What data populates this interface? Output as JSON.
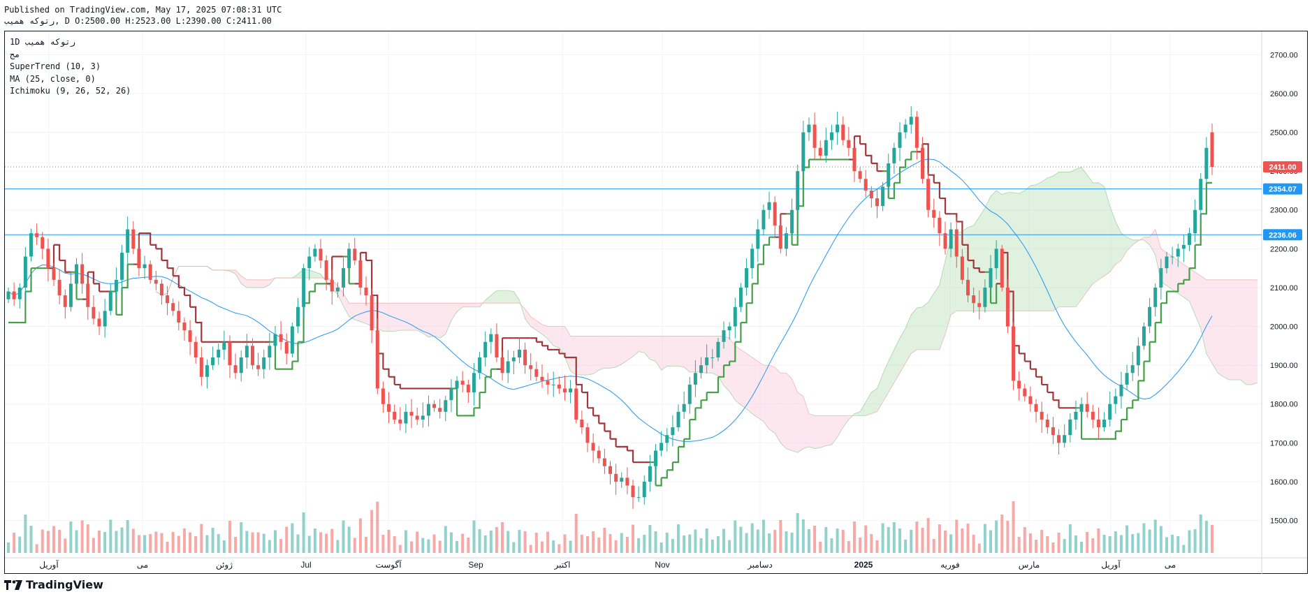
{
  "header": {
    "published": "Published on TradingView.com, May 17, 2025 07:08:31 UTC",
    "ohlc": "رتوکه همیب, D O:2500.00 H:2523.00 L:2390.00 C:2411.00"
  },
  "legend": {
    "symbol": "1D  رتوکه همیب",
    "subtitle": "مج",
    "indicators": [
      "SuperTrend (10, 3)",
      "MA (25, close, 0)",
      "Ichimoku (9, 26, 52, 26)"
    ]
  },
  "footer": {
    "brand": "TradingView"
  },
  "colors": {
    "up": "#26a69a",
    "down": "#ef5350",
    "supertrend_up": "#43a047",
    "supertrend_down": "#a0363a",
    "ma": "#2196f3",
    "cloud_green": "#a5d6a7",
    "cloud_red": "#f8bbd0",
    "hline": "#2196f3"
  },
  "chart_data": {
    "type": "candlestick",
    "y_axis": {
      "side": "right",
      "range": [
        1420,
        2760
      ],
      "ticks": [
        1500,
        1600,
        1700,
        1800,
        1900,
        2000,
        2100,
        2200,
        2300,
        2400,
        2500,
        2600,
        2700
      ]
    },
    "x_axis": {
      "labels": [
        "آوریل",
        "می",
        "ژوئن",
        "Jul",
        "آگوست",
        "Sep",
        "اکتبر",
        "Nov",
        "دسامبر",
        "2025",
        "فوریه",
        "مارس",
        "آوریل",
        "می"
      ]
    },
    "price_labels": [
      {
        "value": 2411.0,
        "text": "2411.00",
        "color": "#ef5350"
      },
      {
        "value": 2354.07,
        "text": "2354.07",
        "color": "#2196f3"
      },
      {
        "value": 2236.06,
        "text": "2236.06",
        "color": "#2196f3"
      }
    ],
    "horizontal_lines": [
      2354.07,
      2236.06
    ],
    "dotted_line": 2411.0,
    "last_candle": {
      "open": 2500.0,
      "high": 2523.0,
      "low": 2390.0,
      "close": 2411.0
    },
    "closes": [
      2090,
      2070,
      2100,
      2180,
      2240,
      2230,
      2200,
      2150,
      2120,
      2080,
      2050,
      2110,
      2160,
      2110,
      2050,
      2020,
      2000,
      2040,
      2090,
      2120,
      2190,
      2250,
      2200,
      2150,
      2160,
      2120,
      2110,
      2080,
      2060,
      2040,
      2010,
      1990,
      1960,
      1920,
      1870,
      1900,
      1920,
      1940,
      1960,
      1900,
      1880,
      1920,
      1950,
      1900,
      1890,
      1920,
      1950,
      1980,
      1960,
      1930,
      2000,
      2050,
      2150,
      2180,
      2200,
      2170,
      2120,
      2090,
      2100,
      2150,
      2200,
      2170,
      2100,
      2080,
      1990,
      1840,
      1800,
      1780,
      1760,
      1750,
      1780,
      1770,
      1760,
      1770,
      1800,
      1790,
      1780,
      1810,
      1840,
      1860,
      1850,
      1830,
      1880,
      1920,
      1960,
      1980,
      1920,
      1880,
      1910,
      1920,
      1940,
      1900,
      1890,
      1870,
      1860,
      1850,
      1850,
      1840,
      1830,
      1840,
      1760,
      1740,
      1700,
      1680,
      1660,
      1640,
      1620,
      1600,
      1610,
      1590,
      1560,
      1560,
      1600,
      1640,
      1680,
      1700,
      1720,
      1740,
      1780,
      1800,
      1850,
      1880,
      1900,
      1920,
      1920,
      1960,
      1990,
      2000,
      2050,
      2100,
      2150,
      2200,
      2250,
      2300,
      2320,
      2260,
      2200,
      2240,
      2300,
      2400,
      2500,
      2520,
      2460,
      2440,
      2480,
      2500,
      2520,
      2480,
      2460,
      2400,
      2380,
      2350,
      2330,
      2310,
      2360,
      2420,
      2460,
      2500,
      2520,
      2540,
      2460,
      2380,
      2300,
      2280,
      2240,
      2200,
      2250,
      2180,
      2120,
      2080,
      2060,
      2050,
      2100,
      2150,
      2200,
      2100,
      2000,
      1860,
      1840,
      1820,
      1800,
      1780,
      1760,
      1740,
      1720,
      1700,
      1720,
      1760,
      1780,
      1800,
      1780,
      1760,
      1740,
      1760,
      1800,
      1820,
      1850,
      1880,
      1900,
      1950,
      2000,
      2050,
      2100,
      2150,
      2180,
      2180,
      2200,
      2210,
      2240,
      2300,
      2380,
      2460,
      2411
    ],
    "supertrend": {
      "description": "stepped trailing line; green below price in uptrends, dark red above price in downtrends"
    },
    "ma_period": 25,
    "ichimoku": [
      9,
      26,
      52,
      26
    ],
    "volume": "bars along the bottom, colored by candle direction"
  }
}
